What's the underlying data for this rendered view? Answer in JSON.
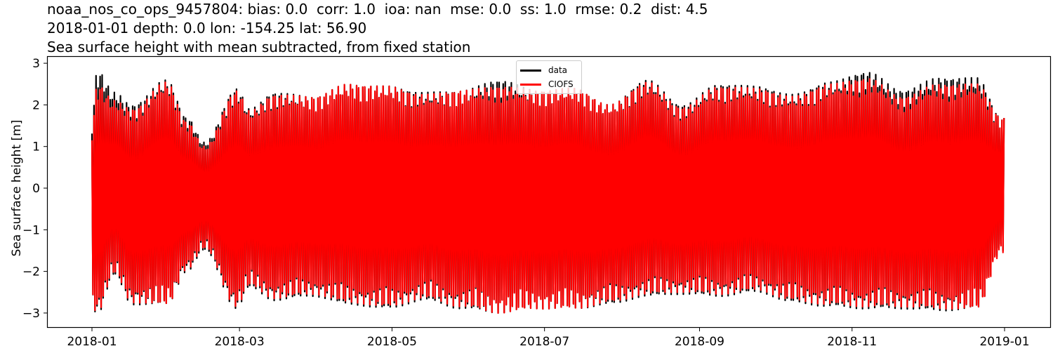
{
  "title": {
    "line1": "noaa_nos_co_ops_9457804: bias: 0.0  corr: 1.0  ioa: nan  mse: 0.0  ss: 1.0  rmse: 0.2  dist: 4.5",
    "line2": "2018-01-01 depth: 0.0 lon: -154.25 lat: 56.90",
    "line3": "Sea surface height with mean subtracted, from fixed station"
  },
  "axes": {
    "ylabel": "Sea surface height [m]",
    "yticks": [
      "3",
      "2",
      "1",
      "0",
      "−1",
      "−2",
      "−3"
    ],
    "xticks": [
      "2018-01",
      "2018-03",
      "2018-05",
      "2018-07",
      "2018-09",
      "2018-11",
      "2019-01"
    ]
  },
  "legend": {
    "items": [
      {
        "label": "data",
        "color": "#000000"
      },
      {
        "label": "CIOFS",
        "color": "#ff0000"
      }
    ]
  },
  "chart_data": {
    "type": "line",
    "title": "noaa_nos_co_ops_9457804: bias: 0.0  corr: 1.0  ioa: nan  mse: 0.0  ss: 1.0  rmse: 0.2  dist: 4.5 / 2018-01-01 depth: 0.0 lon: -154.25 lat: 56.90 / Sea surface height with mean subtracted, from fixed station",
    "xlabel": "",
    "ylabel": "Sea surface height [m]",
    "xlim": [
      "2017-12-13",
      "2019-01-31"
    ],
    "ylim": [
      -3.35,
      3.15
    ],
    "xticks": [
      "2018-01",
      "2018-03",
      "2018-05",
      "2018-07",
      "2018-09",
      "2018-11",
      "2019-01"
    ],
    "yticks": [
      -3,
      -2,
      -1,
      0,
      1,
      2,
      3
    ],
    "grid": false,
    "legend_position": "upper center",
    "description": "Hourly tidal sea surface height time series for 2018 showing semi-diurnal oscillation with spring-neap fortnightly envelope; observed data (black) is nearly identical to CIOFS model (red).",
    "envelope_sample_dates": [
      "2018-01-01",
      "2018-01-03",
      "2018-01-10",
      "2018-01-17",
      "2018-01-31",
      "2018-02-08",
      "2018-02-15",
      "2018-02-28",
      "2018-03-05",
      "2018-03-15",
      "2018-03-30",
      "2018-04-14",
      "2018-04-29",
      "2018-05-14",
      "2018-05-29",
      "2018-06-13",
      "2018-06-28",
      "2018-07-13",
      "2018-07-27",
      "2018-08-11",
      "2018-08-25",
      "2018-09-09",
      "2018-09-24",
      "2018-10-08",
      "2018-10-23",
      "2018-11-07",
      "2018-11-21",
      "2018-12-06",
      "2018-12-21",
      "2018-12-31"
    ],
    "series": [
      {
        "name": "data",
        "color": "#000000",
        "upper_envelope": [
          1.6,
          2.85,
          2.3,
          2.0,
          2.6,
          1.7,
          1.1,
          2.4,
          1.9,
          2.3,
          2.2,
          2.5,
          2.45,
          2.3,
          2.35,
          2.6,
          2.35,
          2.4,
          2.0,
          2.6,
          2.0,
          2.5,
          2.45,
          2.25,
          2.55,
          2.8,
          2.35,
          2.65,
          2.65,
          1.7
        ],
        "lower_envelope": [
          -2.8,
          -3.05,
          -2.1,
          -2.8,
          -2.8,
          -2.0,
          -1.5,
          -2.9,
          -2.4,
          -2.7,
          -2.6,
          -2.8,
          -2.9,
          -2.7,
          -2.9,
          -3.0,
          -2.9,
          -2.9,
          -2.8,
          -2.6,
          -2.55,
          -2.6,
          -2.5,
          -2.75,
          -2.85,
          -2.9,
          -2.9,
          -2.95,
          -2.9,
          -1.5
        ]
      },
      {
        "name": "CIOFS",
        "color": "#ff0000",
        "upper_envelope": [
          1.4,
          2.5,
          2.1,
          1.9,
          2.55,
          1.6,
          1.0,
          2.35,
          1.85,
          2.25,
          2.2,
          2.5,
          2.45,
          2.25,
          2.35,
          2.45,
          2.35,
          2.4,
          2.0,
          2.55,
          1.95,
          2.45,
          2.4,
          2.2,
          2.5,
          2.65,
          2.2,
          2.5,
          2.5,
          1.7
        ],
        "lower_envelope": [
          -2.8,
          -3.0,
          -2.05,
          -2.75,
          -2.8,
          -1.95,
          -1.45,
          -2.85,
          -2.35,
          -2.65,
          -2.55,
          -2.75,
          -2.85,
          -2.65,
          -2.85,
          -3.0,
          -2.9,
          -2.9,
          -2.75,
          -2.55,
          -2.5,
          -2.55,
          -2.45,
          -2.7,
          -2.8,
          -2.85,
          -2.85,
          -2.9,
          -2.9,
          -1.55
        ]
      }
    ]
  }
}
